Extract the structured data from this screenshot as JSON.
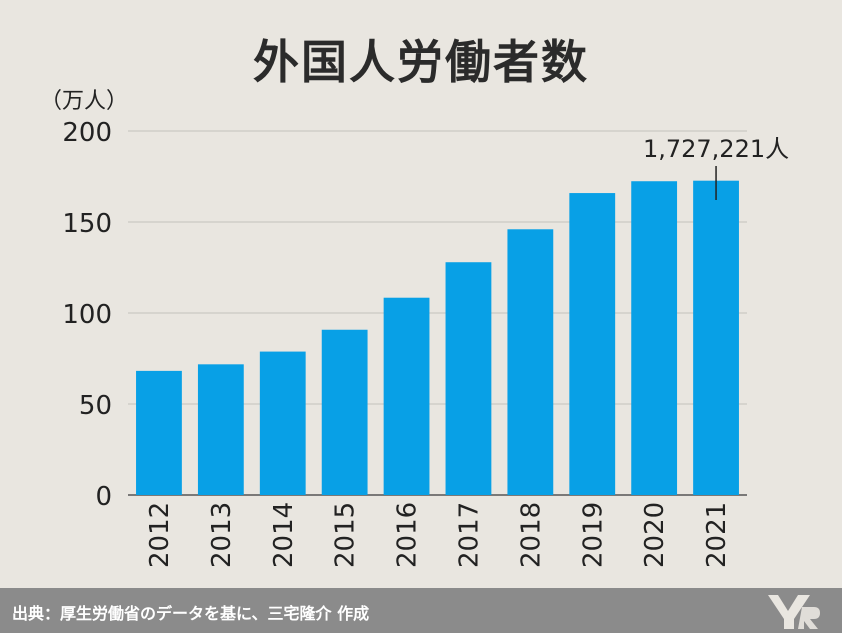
{
  "chart_data": {
    "type": "bar",
    "title": "外国人労働者数",
    "ylabel": "（万人）",
    "xlabel": "",
    "ylim": [
      0,
      200
    ],
    "yticks": [
      0,
      50,
      100,
      150,
      200
    ],
    "categories": [
      "2012",
      "2013",
      "2014",
      "2015",
      "2016",
      "2017",
      "2018",
      "2019",
      "2020",
      "2021"
    ],
    "values": [
      68.2,
      71.8,
      78.8,
      90.8,
      108.4,
      127.9,
      146.0,
      165.9,
      172.4,
      172.7
    ],
    "bar_color": "#08a0e6",
    "grid": true,
    "annotation": {
      "category": "2021",
      "text": "1,727,221人"
    }
  },
  "footer": {
    "source": "出典：厚生労働省のデータを基に、三宅隆介 作成"
  },
  "colors": {
    "background": "#e9e6e0",
    "footer": "#8b8b8b",
    "bar": "#08a0e6"
  }
}
